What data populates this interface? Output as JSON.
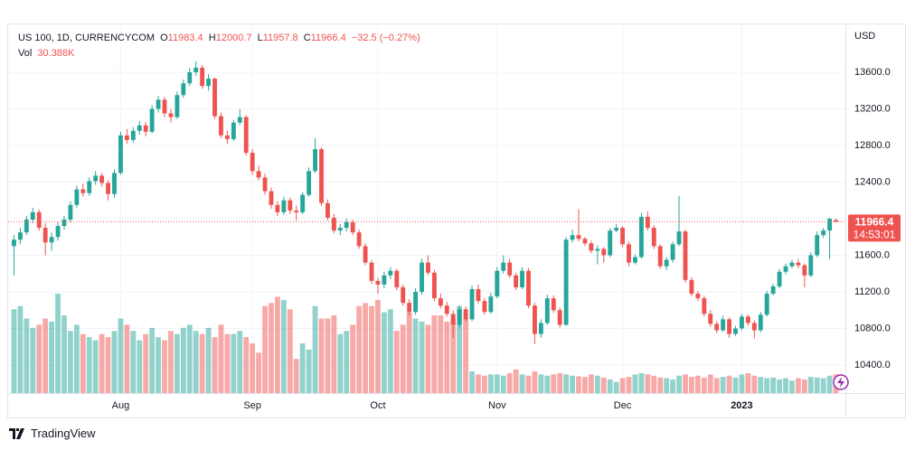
{
  "header": {
    "symbol": "US 100, 1D, CURRENCYCOM",
    "o": "O",
    "h": "H",
    "l": "L",
    "c": "C",
    "change": "−32.5 (−0.27%)",
    "vol_label": "Vol",
    "vol_value": "30.388K",
    "currency": "USD",
    "countdown": "14:53:01",
    "brand": "TradingView"
  },
  "chart_data": {
    "type": "candlestick",
    "up_color": "#26a69a",
    "down_color": "#ef5350",
    "grid": true,
    "ylim": [
      10094,
      14133
    ],
    "yticks": [
      {
        "value": 10400,
        "label": "10400.0"
      },
      {
        "value": 10800,
        "label": "10800.0"
      },
      {
        "value": 11200,
        "label": "11200.0"
      },
      {
        "value": 11600,
        "label": "11600.0"
      },
      {
        "value": 12000,
        "label": "12000.0"
      },
      {
        "value": 12400,
        "label": "12400.0"
      },
      {
        "value": 12800,
        "label": "12800.0"
      },
      {
        "value": 13200,
        "label": "13200.0"
      },
      {
        "value": 13600,
        "label": "13600.0"
      }
    ],
    "categories": [
      null,
      null,
      null,
      null,
      null,
      null,
      null,
      null,
      null,
      null,
      null,
      null,
      null,
      null,
      null,
      null,
      null,
      "Aug",
      null,
      null,
      null,
      null,
      null,
      null,
      null,
      null,
      null,
      null,
      null,
      null,
      null,
      null,
      null,
      null,
      null,
      null,
      null,
      null,
      "Sep",
      null,
      null,
      null,
      null,
      null,
      null,
      null,
      null,
      null,
      null,
      null,
      null,
      null,
      null,
      null,
      null,
      null,
      null,
      null,
      "Oct",
      null,
      null,
      null,
      null,
      null,
      null,
      null,
      null,
      null,
      null,
      null,
      null,
      null,
      null,
      null,
      null,
      null,
      null,
      "Nov",
      null,
      null,
      null,
      null,
      null,
      null,
      null,
      null,
      null,
      null,
      null,
      null,
      null,
      null,
      null,
      null,
      null,
      null,
      null,
      "Dec",
      null,
      null,
      null,
      null,
      null,
      null,
      null,
      null,
      null,
      null,
      null,
      null,
      null,
      null,
      null,
      null,
      null,
      null,
      "2023",
      null,
      null,
      null,
      null,
      null,
      null,
      null,
      null,
      null,
      null,
      null,
      null,
      null,
      null,
      null
    ],
    "candles": [
      [
        11700,
        11820,
        11380,
        11770
      ],
      [
        11770,
        11900,
        11720,
        11850
      ],
      [
        11850,
        12030,
        11820,
        11990
      ],
      [
        11990,
        12120,
        11950,
        12070
      ],
      [
        12070,
        12100,
        11870,
        11900
      ],
      [
        11900,
        11950,
        11600,
        11740
      ],
      [
        11740,
        11850,
        11650,
        11800
      ],
      [
        11800,
        11960,
        11760,
        11920
      ],
      [
        11920,
        12030,
        11880,
        11990
      ],
      [
        11990,
        12190,
        11960,
        12150
      ],
      [
        12150,
        12360,
        12120,
        12320
      ],
      [
        12320,
        12380,
        12240,
        12280
      ],
      [
        12280,
        12450,
        12250,
        12410
      ],
      [
        12410,
        12520,
        12370,
        12470
      ],
      [
        12470,
        12500,
        12350,
        12390
      ],
      [
        12390,
        12420,
        12200,
        12270
      ],
      [
        12270,
        12540,
        12230,
        12500
      ],
      [
        12500,
        12950,
        12480,
        12910
      ],
      [
        12910,
        12980,
        12820,
        12860
      ],
      [
        12860,
        13000,
        12830,
        12960
      ],
      [
        12960,
        13070,
        12920,
        13020
      ],
      [
        13020,
        13060,
        12900,
        12950
      ],
      [
        12950,
        13240,
        12930,
        13200
      ],
      [
        13200,
        13340,
        13160,
        13300
      ],
      [
        13300,
        13330,
        13110,
        13150
      ],
      [
        13150,
        13200,
        13050,
        13110
      ],
      [
        13110,
        13390,
        13090,
        13350
      ],
      [
        13350,
        13520,
        13320,
        13480
      ],
      [
        13480,
        13650,
        13450,
        13600
      ],
      [
        13600,
        13720,
        13560,
        13650
      ],
      [
        13650,
        13680,
        13420,
        13450
      ],
      [
        13450,
        13580,
        13400,
        13530
      ],
      [
        13530,
        13540,
        13090,
        13120
      ],
      [
        13120,
        13160,
        12880,
        12910
      ],
      [
        12910,
        12960,
        12820,
        12870
      ],
      [
        12870,
        13080,
        12850,
        13050
      ],
      [
        13050,
        13200,
        13020,
        13110
      ],
      [
        13110,
        13130,
        12690,
        12720
      ],
      [
        12720,
        12760,
        12480,
        12520
      ],
      [
        12520,
        12580,
        12420,
        12450
      ],
      [
        12450,
        12490,
        12260,
        12300
      ],
      [
        12300,
        12340,
        12110,
        12150
      ],
      [
        12150,
        12190,
        12030,
        12070
      ],
      [
        12070,
        12240,
        12040,
        12200
      ],
      [
        12200,
        12230,
        12050,
        12090
      ],
      [
        12090,
        12140,
        11980,
        12070
      ],
      [
        12070,
        12290,
        12050,
        12260
      ],
      [
        12260,
        12560,
        12240,
        12520
      ],
      [
        12520,
        12880,
        12500,
        12760
      ],
      [
        12760,
        12780,
        12140,
        12170
      ],
      [
        12170,
        12210,
        11980,
        12010
      ],
      [
        12010,
        12050,
        11840,
        11870
      ],
      [
        11870,
        11940,
        11820,
        11900
      ],
      [
        11900,
        12000,
        11860,
        11960
      ],
      [
        11960,
        11990,
        11820,
        11850
      ],
      [
        11850,
        11880,
        11670,
        11700
      ],
      [
        11700,
        11730,
        11490,
        11520
      ],
      [
        11520,
        11550,
        11290,
        11320
      ],
      [
        11320,
        11350,
        11180,
        11280
      ],
      [
        11280,
        11420,
        11240,
        11380
      ],
      [
        11380,
        11470,
        11340,
        11430
      ],
      [
        11430,
        11450,
        11220,
        11250
      ],
      [
        11250,
        11280,
        11050,
        11080
      ],
      [
        11080,
        11120,
        10940,
        10980
      ],
      [
        10980,
        11240,
        10950,
        11200
      ],
      [
        11200,
        11560,
        11170,
        11520
      ],
      [
        11520,
        11600,
        11380,
        11410
      ],
      [
        11410,
        11440,
        11100,
        11130
      ],
      [
        11130,
        11180,
        11020,
        11050
      ],
      [
        11050,
        11090,
        10930,
        10960
      ],
      [
        10960,
        11000,
        10700,
        10840
      ],
      [
        10840,
        11050,
        10810,
        11010
      ],
      [
        11010,
        11040,
        10870,
        10900
      ],
      [
        10900,
        11270,
        10880,
        11230
      ],
      [
        11230,
        11280,
        11070,
        11100
      ],
      [
        11100,
        11130,
        10950,
        10980
      ],
      [
        10980,
        11190,
        10960,
        11150
      ],
      [
        11150,
        11470,
        11130,
        11430
      ],
      [
        11430,
        11600,
        11400,
        11520
      ],
      [
        11520,
        11560,
        11350,
        11380
      ],
      [
        11380,
        11410,
        11220,
        11250
      ],
      [
        11250,
        11470,
        11230,
        11430
      ],
      [
        11430,
        11460,
        11020,
        11050
      ],
      [
        11050,
        11080,
        10630,
        10740
      ],
      [
        10740,
        10900,
        10700,
        10860
      ],
      [
        10860,
        11170,
        10840,
        11130
      ],
      [
        11130,
        11160,
        10970,
        11000
      ],
      [
        11000,
        11030,
        10810,
        10840
      ],
      [
        10840,
        11800,
        10830,
        11770
      ],
      [
        11770,
        11880,
        11740,
        11820
      ],
      [
        11820,
        12100,
        11750,
        11780
      ],
      [
        11780,
        11800,
        11700,
        11730
      ],
      [
        11730,
        11760,
        11620,
        11650
      ],
      [
        11650,
        11710,
        11500,
        11670
      ],
      [
        11670,
        11690,
        11520,
        11600
      ],
      [
        11600,
        11900,
        11580,
        11870
      ],
      [
        11870,
        11940,
        11850,
        11900
      ],
      [
        11900,
        11920,
        11690,
        11720
      ],
      [
        11720,
        11750,
        11480,
        11520
      ],
      [
        11520,
        11610,
        11500,
        11580
      ],
      [
        11580,
        12060,
        11560,
        12020
      ],
      [
        12020,
        12080,
        11870,
        11900
      ],
      [
        11900,
        11930,
        11670,
        11700
      ],
      [
        11700,
        11720,
        11450,
        11480
      ],
      [
        11480,
        11580,
        11440,
        11550
      ],
      [
        11550,
        11750,
        11520,
        11720
      ],
      [
        11720,
        12250,
        11700,
        11860
      ],
      [
        11860,
        11880,
        11300,
        11330
      ],
      [
        11330,
        11360,
        11150,
        11180
      ],
      [
        11180,
        11210,
        11100,
        11130
      ],
      [
        11130,
        11160,
        10930,
        10960
      ],
      [
        10960,
        11000,
        10820,
        10850
      ],
      [
        10850,
        10880,
        10750,
        10780
      ],
      [
        10780,
        10940,
        10760,
        10900
      ],
      [
        10900,
        10920,
        10700,
        10740
      ],
      [
        10740,
        10830,
        10720,
        10800
      ],
      [
        10800,
        10960,
        10780,
        10930
      ],
      [
        10930,
        10950,
        10830,
        10860
      ],
      [
        10860,
        10890,
        10690,
        10780
      ],
      [
        10780,
        10980,
        10760,
        10950
      ],
      [
        10950,
        11210,
        10930,
        11180
      ],
      [
        11180,
        11290,
        11160,
        11260
      ],
      [
        11260,
        11450,
        11240,
        11420
      ],
      [
        11420,
        11510,
        11390,
        11480
      ],
      [
        11480,
        11550,
        11460,
        11520
      ],
      [
        11520,
        11560,
        11460,
        11490
      ],
      [
        11490,
        11510,
        11250,
        11380
      ],
      [
        11380,
        11630,
        11360,
        11600
      ],
      [
        11600,
        11860,
        11580,
        11820
      ],
      [
        11820,
        11900,
        11790,
        11870
      ],
      [
        11870,
        12010,
        11560,
        11998.9
      ],
      [
        11983.4,
        12000.7,
        11957.8,
        11966.4
      ]
    ],
    "volume": [
      135,
      140,
      120,
      105,
      110,
      120,
      115,
      160,
      125,
      100,
      110,
      95,
      90,
      85,
      95,
      90,
      100,
      120,
      110,
      100,
      85,
      95,
      105,
      90,
      85,
      100,
      95,
      105,
      110,
      100,
      95,
      105,
      90,
      110,
      95,
      95,
      100,
      90,
      80,
      65,
      140,
      145,
      155,
      150,
      135,
      55,
      80,
      70,
      140,
      120,
      120,
      125,
      95,
      100,
      110,
      140,
      145,
      140,
      150,
      130,
      135,
      100,
      110,
      130,
      120,
      115,
      110,
      125,
      125,
      115,
      120,
      140,
      120,
      35,
      30,
      28,
      30,
      30,
      28,
      32,
      38,
      30,
      28,
      35,
      30,
      28,
      30,
      32,
      30,
      28,
      27,
      26,
      30,
      28,
      25,
      22,
      18,
      24,
      26,
      30,
      32,
      30,
      28,
      25,
      24,
      22,
      28,
      30,
      26,
      28,
      25,
      30,
      24,
      26,
      28,
      25,
      30,
      32,
      28,
      26,
      24,
      25,
      22,
      24,
      20,
      24,
      22,
      26,
      25,
      24,
      28,
      30.388
    ]
  }
}
